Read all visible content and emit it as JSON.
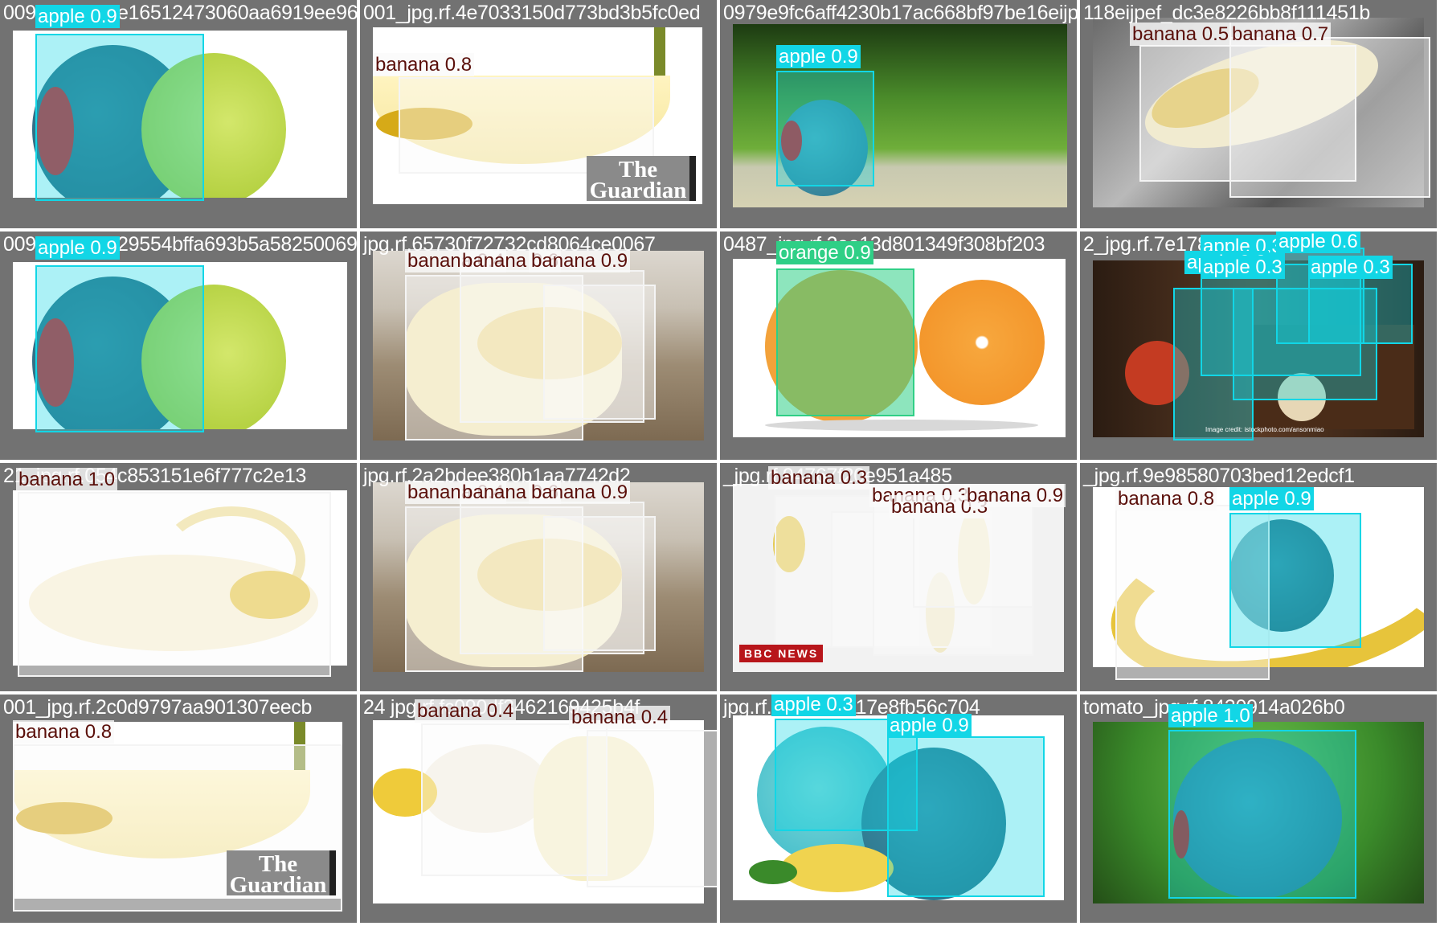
{
  "colors": {
    "apple": "#12d6e6",
    "banana": "#f4f4f4",
    "orange": "#2fcf86",
    "banana_text": "#5a0f0a",
    "tile_bg": "#727272"
  },
  "tiles": [
    {
      "title": "0096_jpg.rf.1e16512473060aa6919ee96",
      "photo": "apple-white",
      "logo": null,
      "dets": [
        {
          "label": "apple 0.9",
          "cls": "apple"
        }
      ]
    },
    {
      "title": "001_jpg.rf.4e7033150d773bd3b5fc0ed",
      "photo": "banana-white",
      "logo": "The Guardian",
      "dets": [
        {
          "label": "banana 0.8",
          "cls": "banana"
        }
      ]
    },
    {
      "title": "0979e9fc6aff4230b17ac668bf97be16eijp",
      "photo": "grass",
      "logo": null,
      "dets": [
        {
          "label": "apple 0.9",
          "cls": "apple"
        }
      ]
    },
    {
      "title": "118eijpef_dc3e8226bb8f111451b",
      "photo": "banana-water",
      "logo": null,
      "dets": [
        {
          "label": "banana 0.5",
          "cls": "banana"
        },
        {
          "label": "banana 0.7",
          "cls": "banana"
        }
      ]
    },
    {
      "title": "0096_jpg.rf.229554bffa693b5a58250069",
      "photo": "apple-white",
      "logo": null,
      "dets": [
        {
          "label": "apple 0.9",
          "cls": "apple"
        }
      ]
    },
    {
      "title": "jpg.rf.65730f72732cd8064ce0067",
      "photo": "banana-wood",
      "logo": null,
      "dets": [
        {
          "label": "banana 0.4",
          "cls": "banana"
        },
        {
          "label": "banana 0.6",
          "cls": "banana"
        },
        {
          "label": "banana 0.9",
          "cls": "banana"
        }
      ]
    },
    {
      "title": "0487_jpg.rf.2ee13d801349f308bf203",
      "photo": "orange",
      "logo": null,
      "dets": [
        {
          "label": "orange 0.9",
          "cls": "orange"
        }
      ]
    },
    {
      "title": "2_jpg.rf.7e17878528f",
      "photo": "apple-crate",
      "logo": "Image credit: istockphoto.com/ansonmiao",
      "dets": [
        {
          "label": "apple 0.3",
          "cls": "apple"
        },
        {
          "label": "apple 0.6",
          "cls": "apple"
        },
        {
          "label": "apple 0.3",
          "cls": "apple"
        },
        {
          "label": "apple 0.3",
          "cls": "apple"
        },
        {
          "label": "apple 0.3",
          "cls": "apple"
        }
      ]
    },
    {
      "title": "21_jpg.rf.054c853151e6f777c2e13",
      "photo": "banana-peeled",
      "logo": null,
      "dets": [
        {
          "label": "banana 1.0",
          "cls": "banana"
        }
      ]
    },
    {
      "title": "jpg.rf.2a2bdee380b1aa7742d2",
      "photo": "banana-wood",
      "logo": null,
      "dets": [
        {
          "label": "banana 0.4",
          "cls": "banana"
        },
        {
          "label": "banana 0.6",
          "cls": "banana"
        },
        {
          "label": "banana 0.9",
          "cls": "banana"
        }
      ]
    },
    {
      "title": "_jpg.rf.94767f20e951a485",
      "photo": "banana-bbc",
      "logo": "BBC NEWS",
      "dets": [
        {
          "label": "banana 0.3",
          "cls": "banana"
        },
        {
          "label": "banana 0.3",
          "cls": "banana"
        },
        {
          "label": "banana 0.3",
          "cls": "banana"
        },
        {
          "label": "banana 0.9",
          "cls": "banana"
        }
      ]
    },
    {
      "title": "_jpg.rf.9e98580703bed12edcf1",
      "photo": "banana-apple",
      "logo": null,
      "dets": [
        {
          "label": "banana 0.8",
          "cls": "banana"
        },
        {
          "label": "apple 0.9",
          "cls": "apple"
        }
      ]
    },
    {
      "title": "001_jpg.rf.2c0d9797aa901307eecb",
      "photo": "banana-white",
      "logo": "The Guardian",
      "dets": [
        {
          "label": "banana 0.8",
          "cls": "banana"
        }
      ]
    },
    {
      "title": "24 jpg.rf.fc090df3462169425b4f",
      "photo": "banana-peel2",
      "logo": null,
      "dets": [
        {
          "label": "banana 0.4",
          "cls": "banana"
        },
        {
          "label": "banana 0.4",
          "cls": "banana"
        }
      ]
    },
    {
      "title": "jpg.rf.ceb9c12117e8fb56c704",
      "photo": "apple-halves",
      "logo": null,
      "dets": [
        {
          "label": "apple 0.3",
          "cls": "apple"
        },
        {
          "label": "apple 0.9",
          "cls": "apple"
        }
      ]
    },
    {
      "title": "tomato_jpg.rf.8430914a026b0",
      "photo": "apple-grass",
      "logo": null,
      "dets": [
        {
          "label": "apple 1.0",
          "cls": "apple"
        }
      ]
    }
  ]
}
